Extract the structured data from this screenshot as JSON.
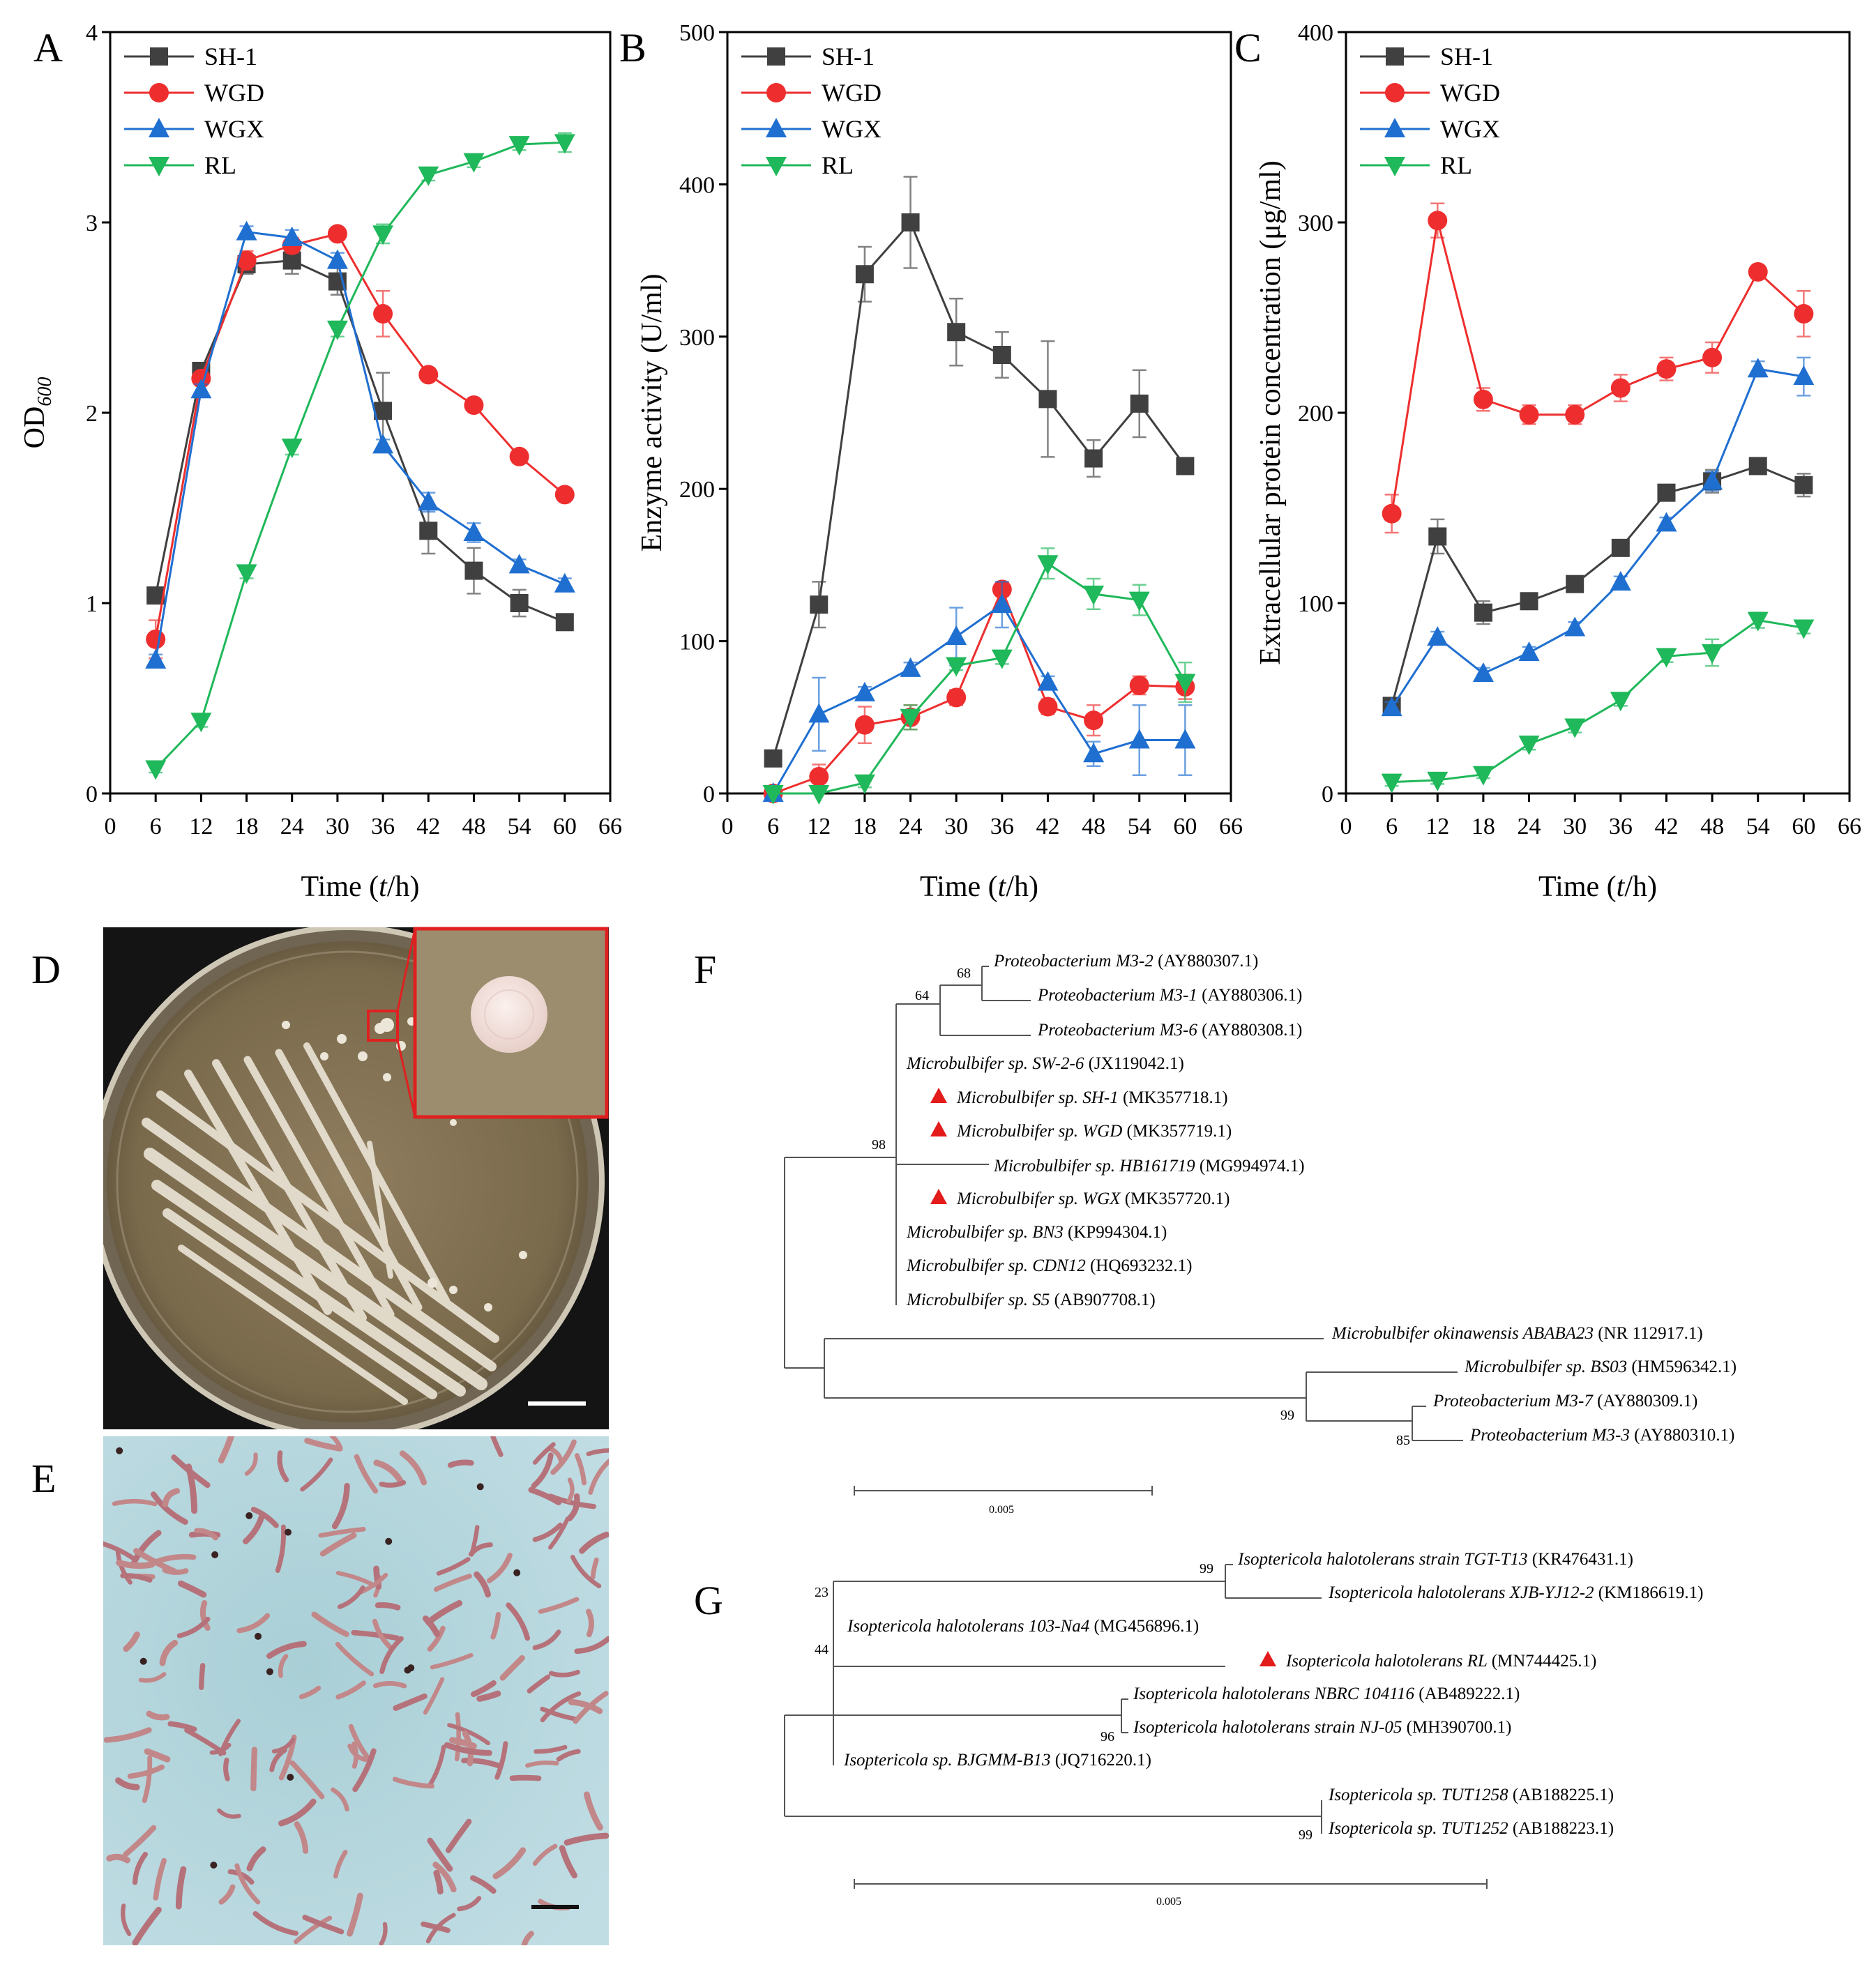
{
  "colors": {
    "SH-1": "#404040",
    "WGD": "#ee2e2e",
    "WGX": "#1f6fd1",
    "RL": "#1fb85a"
  },
  "chart_data": [
    {
      "id": "A",
      "type": "line",
      "panel_label": "A",
      "xlabel_parts": [
        "Time (",
        "t",
        "/h)"
      ],
      "ylabel_main": "OD",
      "ylabel_sub": "600",
      "xlim": [
        0,
        66
      ],
      "ylim": [
        0,
        4
      ],
      "xticks": [
        0,
        6,
        12,
        18,
        24,
        30,
        36,
        42,
        48,
        54,
        60,
        66
      ],
      "yticks": [
        0,
        1,
        2,
        3,
        4
      ],
      "x": [
        6,
        12,
        18,
        24,
        30,
        36,
        42,
        48,
        54,
        60
      ],
      "series": [
        {
          "name": "SH-1",
          "marker": "square",
          "values": [
            1.04,
            2.22,
            2.78,
            2.8,
            2.69,
            2.01,
            1.38,
            1.17,
            1.0,
            0.9
          ],
          "errors": [
            0.03,
            0.03,
            0.05,
            0.07,
            0.07,
            0.2,
            0.12,
            0.12,
            0.07,
            0.03
          ]
        },
        {
          "name": "WGD",
          "marker": "circle",
          "values": [
            0.81,
            2.18,
            2.8,
            2.88,
            2.94,
            2.52,
            2.2,
            2.04,
            1.77,
            1.57
          ],
          "errors": [
            0.1,
            0.03,
            0.05,
            0.04,
            0.03,
            0.12,
            0.03,
            0.03,
            0.03,
            0.03
          ]
        },
        {
          "name": "WGX",
          "marker": "triangle-up",
          "values": [
            0.7,
            2.12,
            2.95,
            2.92,
            2.8,
            1.83,
            1.53,
            1.37,
            1.2,
            1.1
          ],
          "errors": [
            0.03,
            0.03,
            0.03,
            0.04,
            0.04,
            0.03,
            0.05,
            0.05,
            0.03,
            0.03
          ]
        },
        {
          "name": "RL",
          "marker": "triangle-down",
          "values": [
            0.13,
            0.38,
            1.16,
            1.82,
            2.44,
            2.94,
            3.25,
            3.32,
            3.41,
            3.42
          ],
          "errors": [
            0.02,
            0.03,
            0.03,
            0.04,
            0.04,
            0.05,
            0.03,
            0.03,
            0.03,
            0.05
          ]
        }
      ]
    },
    {
      "id": "B",
      "type": "line",
      "panel_label": "B",
      "xlabel_parts": [
        "Time (",
        "t",
        "/h)"
      ],
      "ylabel": "Enzyme activity (U/ml)",
      "xlim": [
        0,
        66
      ],
      "ylim": [
        0,
        500
      ],
      "xticks": [
        0,
        6,
        12,
        18,
        24,
        30,
        36,
        42,
        48,
        54,
        60,
        66
      ],
      "yticks": [
        0,
        100,
        200,
        300,
        400,
        500
      ],
      "x": [
        6,
        12,
        18,
        24,
        30,
        36,
        42,
        48,
        54,
        60
      ],
      "series": [
        {
          "name": "SH-1",
          "marker": "square",
          "values": [
            23,
            124,
            341,
            375,
            303,
            288,
            259,
            220,
            256,
            215
          ],
          "errors": [
            5,
            15,
            18,
            30,
            22,
            15,
            38,
            12,
            22,
            5
          ]
        },
        {
          "name": "WGD",
          "marker": "circle",
          "values": [
            0,
            11,
            45,
            50,
            63,
            134,
            57,
            48,
            71,
            70
          ],
          "errors": [
            0,
            8,
            12,
            8,
            5,
            4,
            5,
            10,
            6,
            8
          ]
        },
        {
          "name": "WGX",
          "marker": "triangle-up",
          "values": [
            0,
            52,
            66,
            82,
            103,
            124,
            73,
            26,
            35,
            35
          ],
          "errors": [
            0,
            24,
            4,
            4,
            19,
            15,
            4,
            8,
            23,
            23
          ]
        },
        {
          "name": "RL",
          "marker": "triangle-down",
          "values": [
            0,
            0,
            7,
            50,
            84,
            89,
            151,
            131,
            127,
            73
          ],
          "errors": [
            0,
            0,
            3,
            8,
            3,
            4,
            10,
            10,
            10,
            13
          ]
        }
      ]
    },
    {
      "id": "C",
      "type": "line",
      "panel_label": "C",
      "xlabel_parts": [
        "Time (",
        "t",
        "/h)"
      ],
      "ylabel": "Extracellular protein concentration (μg/ml)",
      "xlim": [
        0,
        66
      ],
      "ylim": [
        0,
        400
      ],
      "xticks": [
        0,
        6,
        12,
        18,
        24,
        30,
        36,
        42,
        48,
        54,
        60,
        66
      ],
      "yticks": [
        0,
        100,
        200,
        300,
        400
      ],
      "x": [
        6,
        12,
        18,
        24,
        30,
        36,
        42,
        48,
        54,
        60
      ],
      "series": [
        {
          "name": "SH-1",
          "marker": "square",
          "values": [
            46,
            135,
            95,
            101,
            110,
            129,
            158,
            164,
            172,
            162
          ],
          "errors": [
            3,
            9,
            6,
            3,
            4,
            4,
            3,
            6,
            3,
            6
          ]
        },
        {
          "name": "WGD",
          "marker": "circle",
          "values": [
            147,
            301,
            207,
            199,
            199,
            213,
            223,
            229,
            274,
            252
          ],
          "errors": [
            10,
            9,
            6,
            5,
            5,
            7,
            6,
            8,
            3,
            12
          ]
        },
        {
          "name": "WGX",
          "marker": "triangle-up",
          "values": [
            45,
            82,
            63,
            74,
            87,
            111,
            142,
            164,
            223,
            219
          ],
          "errors": [
            3,
            3,
            3,
            3,
            3,
            3,
            3,
            5,
            4,
            10
          ]
        },
        {
          "name": "RL",
          "marker": "triangle-down",
          "values": [
            6,
            7,
            10,
            26,
            35,
            49,
            72,
            74,
            91,
            87
          ],
          "errors": [
            2,
            2,
            2,
            3,
            3,
            3,
            3,
            7,
            4,
            3
          ]
        }
      ]
    }
  ],
  "photos": {
    "D": {
      "label": "D",
      "description": "agar plate with colonies"
    },
    "E": {
      "label": "E",
      "description": "Gram stain micrograph"
    }
  },
  "tree_F": {
    "label": "F",
    "leaves": [
      {
        "name": "Proteobacterium M3-2",
        "acc": "(AY880307.1)",
        "marked": false
      },
      {
        "name": "Proteobacterium M3-1",
        "acc": "(AY880306.1)",
        "marked": false
      },
      {
        "name": "Proteobacterium M3-6",
        "acc": "(AY880308.1)",
        "marked": false
      },
      {
        "name": "Microbulbifer sp. SW-2-6",
        "acc": "(JX119042.1)",
        "marked": false
      },
      {
        "name": "Microbulbifer sp. SH-1",
        "acc": "(MK357718.1)",
        "marked": true
      },
      {
        "name": "Microbulbifer sp. WGD",
        "acc": "(MK357719.1)",
        "marked": true
      },
      {
        "name": "Microbulbifer sp. HB161719",
        "acc": "(MG994974.1)",
        "marked": false
      },
      {
        "name": "Microbulbifer sp. WGX",
        "acc": "(MK357720.1)",
        "marked": true
      },
      {
        "name": "Microbulbifer sp. BN3",
        "acc": "(KP994304.1)",
        "marked": false
      },
      {
        "name": "Microbulbifer sp. CDN12",
        "acc": "(HQ693232.1)",
        "marked": false
      },
      {
        "name": "Microbulbifer sp. S5",
        "acc": "(AB907708.1)",
        "marked": false
      },
      {
        "name": "Microbulbifer okinawensis ABABA23",
        "acc": "(NR 112917.1)",
        "marked": false
      },
      {
        "name": "Microbulbifer sp. BS03",
        "acc": "(HM596342.1)",
        "marked": false
      },
      {
        "name": "Proteobacterium M3-7",
        "acc": "(AY880309.1)",
        "marked": false
      },
      {
        "name": "Proteobacterium M3-3",
        "acc": "(AY880310.1)",
        "marked": false
      }
    ],
    "bootstraps": [
      "68",
      "64",
      "98",
      "99",
      "85"
    ],
    "scale": "0.005"
  },
  "tree_G": {
    "label": "G",
    "leaves": [
      {
        "name": "Isoptericola halotolerans strain TGT-T13",
        "acc": "(KR476431.1)",
        "marked": false
      },
      {
        "name": "Isoptericola halotolerans XJB-YJ12-2",
        "acc": "(KM186619.1)",
        "marked": false
      },
      {
        "name": "Isoptericola halotolerans 103-Na4",
        "acc": "(MG456896.1)",
        "marked": false
      },
      {
        "name": "Isoptericola halotolerans RL",
        "acc": "(MN744425.1)",
        "marked": true
      },
      {
        "name": "Isoptericola halotolerans NBRC 104116",
        "acc": "(AB489222.1)",
        "marked": false
      },
      {
        "name": "Isoptericola halotolerans strain NJ-05",
        "acc": "(MH390700.1)",
        "marked": false
      },
      {
        "name": "Isoptericola sp. BJGMM-B13",
        "acc": "(JQ716220.1)",
        "marked": false
      },
      {
        "name": "Isoptericola sp. TUT1258",
        "acc": "(AB188225.1)",
        "marked": false
      },
      {
        "name": "Isoptericola sp. TUT1252",
        "acc": "(AB188223.1)",
        "marked": false
      }
    ],
    "bootstraps": [
      "99",
      "23",
      "44",
      "96",
      "99"
    ],
    "scale": "0.005"
  }
}
